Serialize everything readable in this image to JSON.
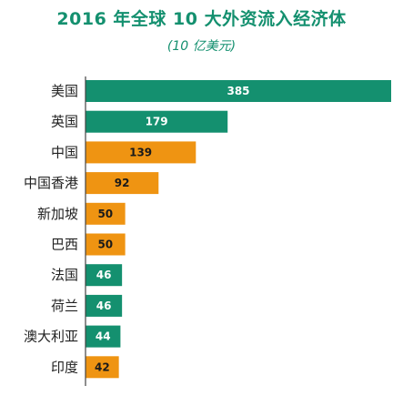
{
  "chart_data": {
    "type": "bar",
    "orientation": "horizontal",
    "title": "2016 年全球 10 大外资流入经济体",
    "subtitle": "(10 亿美元)",
    "categories": [
      "美国",
      "英国",
      "中国",
      "中国香港",
      "新加坡",
      "巴西",
      "法国",
      "荷兰",
      "澳大利亚",
      "印度"
    ],
    "values": [
      385,
      179,
      139,
      92,
      50,
      50,
      46,
      46,
      44,
      42
    ],
    "value_labels": [
      "385",
      "179",
      "139",
      "92",
      "50",
      "50",
      "46",
      "46",
      "44",
      "42"
    ],
    "bar_colors": [
      "#14906f",
      "#14906f",
      "#ef9412",
      "#ef9412",
      "#ef9412",
      "#ef9412",
      "#14906f",
      "#14906f",
      "#14906f",
      "#ef9412"
    ],
    "label_colors": [
      "#ffffff",
      "#ffffff",
      "#1a1a1a",
      "#1a1a1a",
      "#1a1a1a",
      "#1a1a1a",
      "#ffffff",
      "#ffffff",
      "#ffffff",
      "#1a1a1a"
    ],
    "xlim": [
      0,
      385
    ],
    "grid": false,
    "legend": "none"
  },
  "colors": {
    "title": "#14906f",
    "axis": "#444444"
  }
}
